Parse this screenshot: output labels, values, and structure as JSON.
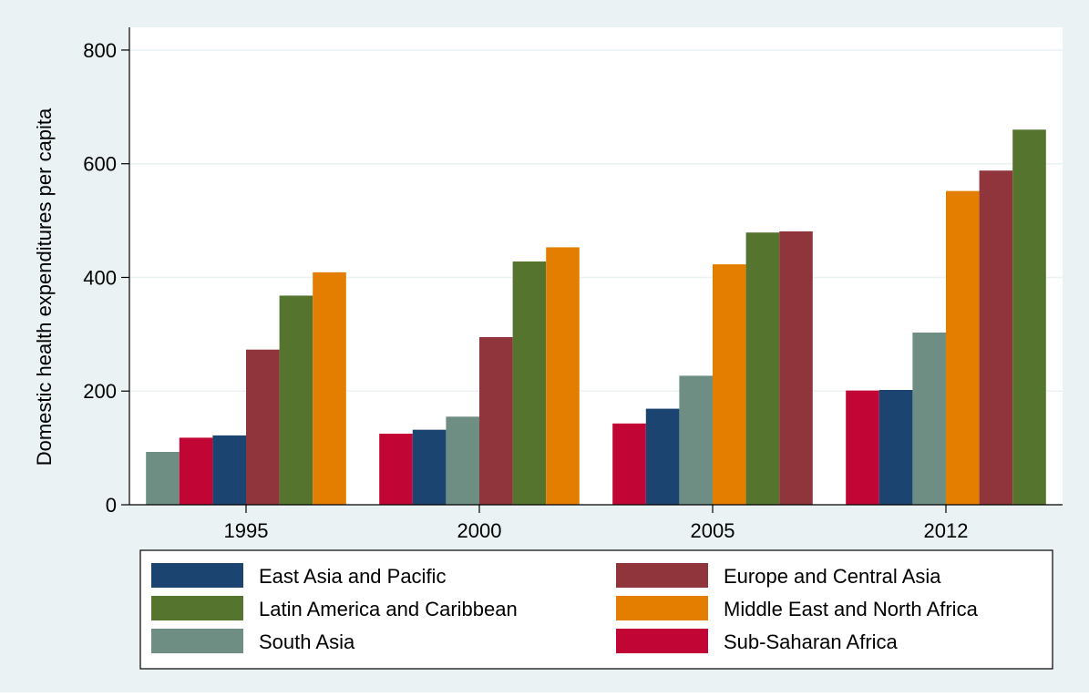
{
  "chart_data": {
    "type": "bar",
    "title": "",
    "xlabel": "",
    "ylabel": "Domestic health expenditures per capita",
    "ylim": [
      0,
      840
    ],
    "yticks": [
      0,
      200,
      400,
      600,
      800
    ],
    "grid": true,
    "legend_position": "bottom",
    "colors": {
      "background": "#eaf2f3",
      "plot_background": "#ffffff",
      "grid": "#eaf2f3"
    },
    "groups": [
      {
        "category": "1995",
        "bars": [
          {
            "series": "South Asia",
            "value": 93
          },
          {
            "series": "Sub-Saharan Africa",
            "value": 118
          },
          {
            "series": "East Asia and Pacific",
            "value": 122
          },
          {
            "series": "Europe and Central Asia",
            "value": 273
          },
          {
            "series": "Latin America and Caribbean",
            "value": 368
          },
          {
            "series": "Middle East and North Africa",
            "value": 409
          }
        ]
      },
      {
        "category": "2000",
        "bars": [
          {
            "series": "Sub-Saharan Africa",
            "value": 125
          },
          {
            "series": "East Asia and Pacific",
            "value": 132
          },
          {
            "series": "South Asia",
            "value": 155
          },
          {
            "series": "Europe and Central Asia",
            "value": 295
          },
          {
            "series": "Latin America and Caribbean",
            "value": 428
          },
          {
            "series": "Middle East and North Africa",
            "value": 453
          }
        ]
      },
      {
        "category": "2005",
        "bars": [
          {
            "series": "Sub-Saharan Africa",
            "value": 143
          },
          {
            "series": "East Asia and Pacific",
            "value": 169
          },
          {
            "series": "South Asia",
            "value": 227
          },
          {
            "series": "Middle East and North Africa",
            "value": 423
          },
          {
            "series": "Latin America and Caribbean",
            "value": 479
          },
          {
            "series": "Europe and Central Asia",
            "value": 481
          }
        ]
      },
      {
        "category": "2012",
        "bars": [
          {
            "series": "Sub-Saharan Africa",
            "value": 201
          },
          {
            "series": "East Asia and Pacific",
            "value": 202
          },
          {
            "series": "South Asia",
            "value": 303
          },
          {
            "series": "Middle East and North Africa",
            "value": 552
          },
          {
            "series": "Europe and Central Asia",
            "value": 588
          },
          {
            "series": "Latin America and Caribbean",
            "value": 660
          }
        ]
      }
    ],
    "legend": [
      {
        "name": "East Asia and Pacific",
        "color": "#1b4470"
      },
      {
        "name": "Europe and Central Asia",
        "color": "#90353b"
      },
      {
        "name": "Latin America and Caribbean",
        "color": "#55752f"
      },
      {
        "name": "Middle East and North Africa",
        "color": "#e37e00"
      },
      {
        "name": "South Asia",
        "color": "#6e8e84"
      },
      {
        "name": "Sub-Saharan Africa",
        "color": "#c10534"
      }
    ]
  }
}
